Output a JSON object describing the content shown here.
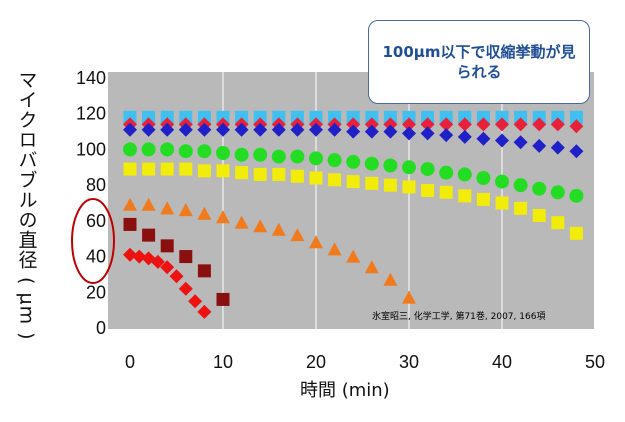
{
  "chart_data": {
    "type": "scatter",
    "xlabel": "時間 (min)",
    "ylabel": "マイクロバブルの直径 ( µm )",
    "xlim": [
      0,
      50
    ],
    "ylim": [
      0,
      140
    ],
    "x_ticks": [
      "0",
      "10",
      "20",
      "30",
      "40",
      "50"
    ],
    "y_ticks": [
      "0",
      "20",
      "40",
      "60",
      "80",
      "100",
      "120",
      "140"
    ],
    "grid": "vertical",
    "annotation": "100µm以下で収縮挙動が見られる",
    "source_note": "氷室昭三, 化学工学, 第71巻, 2007, 166項",
    "series": [
      {
        "marker": "square",
        "color": "#3fc0f0",
        "x": [
          0,
          2,
          4,
          6,
          8,
          10,
          12,
          14,
          16,
          18,
          20,
          22,
          24,
          26,
          28,
          30,
          32,
          34,
          36,
          38,
          40,
          42,
          44,
          46,
          48
        ],
        "y": [
          118,
          118,
          118,
          118,
          118,
          118,
          118,
          118,
          118,
          118,
          118,
          118,
          118,
          118,
          118,
          118,
          118,
          118,
          118,
          118,
          118,
          118,
          118,
          118,
          118
        ]
      },
      {
        "marker": "diamond",
        "color": "#e8203a",
        "x": [
          0,
          2,
          4,
          6,
          8,
          10,
          12,
          14,
          16,
          18,
          20,
          22,
          24,
          26,
          28,
          30,
          32,
          34,
          36,
          38,
          40,
          42,
          44,
          46,
          48
        ],
        "y": [
          114,
          114,
          114,
          114,
          114,
          114,
          114,
          114,
          114,
          114,
          114,
          114,
          114,
          114,
          114,
          114,
          114,
          114,
          114,
          114,
          114,
          114,
          114,
          114,
          113
        ]
      },
      {
        "marker": "diamond",
        "color": "#2020c8",
        "x": [
          0,
          2,
          4,
          6,
          8,
          10,
          12,
          14,
          16,
          18,
          20,
          22,
          24,
          26,
          28,
          30,
          32,
          34,
          36,
          38,
          40,
          42,
          44,
          46,
          48
        ],
        "y": [
          111,
          111,
          111,
          111,
          111,
          111,
          111,
          111,
          111,
          111,
          111,
          111,
          110,
          110,
          110,
          109,
          109,
          108,
          107,
          106,
          105,
          104,
          102,
          101,
          99
        ]
      },
      {
        "marker": "circle",
        "color": "#22dd22",
        "x": [
          0,
          2,
          4,
          6,
          8,
          10,
          12,
          14,
          16,
          18,
          20,
          22,
          24,
          26,
          28,
          30,
          32,
          34,
          36,
          38,
          40,
          42,
          44,
          46,
          48
        ],
        "y": [
          100,
          100,
          100,
          99,
          99,
          98,
          97,
          97,
          96,
          96,
          95,
          94,
          93,
          92,
          91,
          90,
          89,
          87,
          86,
          84,
          82,
          80,
          78,
          76,
          74
        ]
      },
      {
        "marker": "square",
        "color": "#f2ec0a",
        "x": [
          0,
          2,
          4,
          6,
          8,
          10,
          12,
          14,
          16,
          18,
          20,
          22,
          24,
          26,
          28,
          30,
          32,
          34,
          36,
          38,
          40,
          42,
          44,
          46,
          48
        ],
        "y": [
          89,
          89,
          89,
          89,
          88,
          88,
          87,
          86,
          86,
          85,
          84,
          83,
          82,
          81,
          80,
          79,
          77,
          76,
          74,
          72,
          70,
          67,
          63,
          59,
          53
        ]
      },
      {
        "marker": "triangle",
        "color": "#f07a1c",
        "x": [
          0,
          2,
          4,
          6,
          8,
          10,
          12,
          14,
          16,
          18,
          20,
          22,
          24,
          26,
          28,
          30
        ],
        "y": [
          69,
          69,
          67,
          66,
          64,
          62,
          59,
          57,
          55,
          52,
          48,
          44,
          40,
          34,
          27,
          17
        ]
      },
      {
        "marker": "square",
        "color": "#8a0f0f",
        "x": [
          0,
          2,
          4,
          6,
          8,
          10
        ],
        "y": [
          58,
          52,
          46,
          40,
          32,
          16
        ]
      },
      {
        "marker": "diamond",
        "color": "#ee1111",
        "x": [
          0,
          1,
          2,
          3,
          4,
          5,
          6,
          7,
          8
        ],
        "y": [
          41,
          40,
          39,
          37,
          34,
          29,
          22,
          15,
          9
        ]
      }
    ]
  }
}
